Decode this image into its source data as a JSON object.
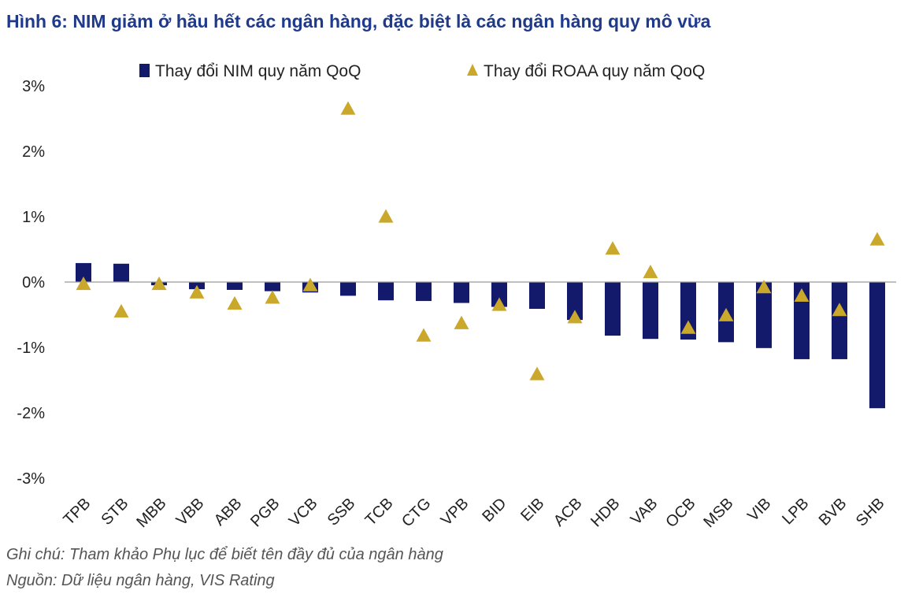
{
  "title": "Hình 6: NIM giảm ở hầu hết các ngân hàng, đặc biệt là các ngân hàng quy mô vừa",
  "notes": {
    "note": "Ghi chú: Tham khảo Phụ lục để biết tên đầy đủ của ngân hàng",
    "source": "Nguồn: Dữ liệu ngân hàng, VIS Rating"
  },
  "colors": {
    "nim": "#141a6b",
    "roaa": "#c9a82c",
    "title": "#1f3a8a",
    "axis": "#999999"
  },
  "chart_data": {
    "type": "bar",
    "categories": [
      "TPB",
      "STB",
      "MBB",
      "VBB",
      "ABB",
      "PGB",
      "VCB",
      "SSB",
      "TCB",
      "CTG",
      "VPB",
      "BID",
      "EIB",
      "ACB",
      "HDB",
      "VAB",
      "OCB",
      "MSB",
      "VIB",
      "LPB",
      "BVB",
      "SHB"
    ],
    "series": [
      {
        "name": "Thay đổi NIM quy năm QoQ",
        "type": "bar",
        "values": [
          0.29,
          0.28,
          -0.05,
          -0.11,
          -0.12,
          -0.14,
          -0.16,
          -0.21,
          -0.28,
          -0.29,
          -0.32,
          -0.38,
          -0.41,
          -0.58,
          -0.82,
          -0.87,
          -0.88,
          -0.92,
          -1.01,
          -1.18,
          -1.18,
          -1.93
        ]
      },
      {
        "name": "Thay đổi ROAA quy năm QoQ",
        "type": "scatter",
        "marker": "triangle",
        "values": [
          -0.03,
          -0.45,
          -0.03,
          -0.16,
          -0.33,
          -0.24,
          -0.05,
          2.65,
          1.0,
          -0.82,
          -0.63,
          -0.35,
          -1.41,
          -0.54,
          0.51,
          0.15,
          -0.7,
          -0.51,
          -0.08,
          -0.21,
          -0.43,
          0.65
        ]
      }
    ],
    "y_ticks": [
      "3%",
      "2%",
      "1%",
      "0%",
      "-1%",
      "-2%",
      "-3%"
    ],
    "y_tick_values": [
      3,
      2,
      1,
      0,
      -1,
      -2,
      -3
    ],
    "ylim": [
      -3,
      3
    ],
    "xlabel": "",
    "ylabel": "",
    "legend_position": "top-center",
    "grid": false
  }
}
